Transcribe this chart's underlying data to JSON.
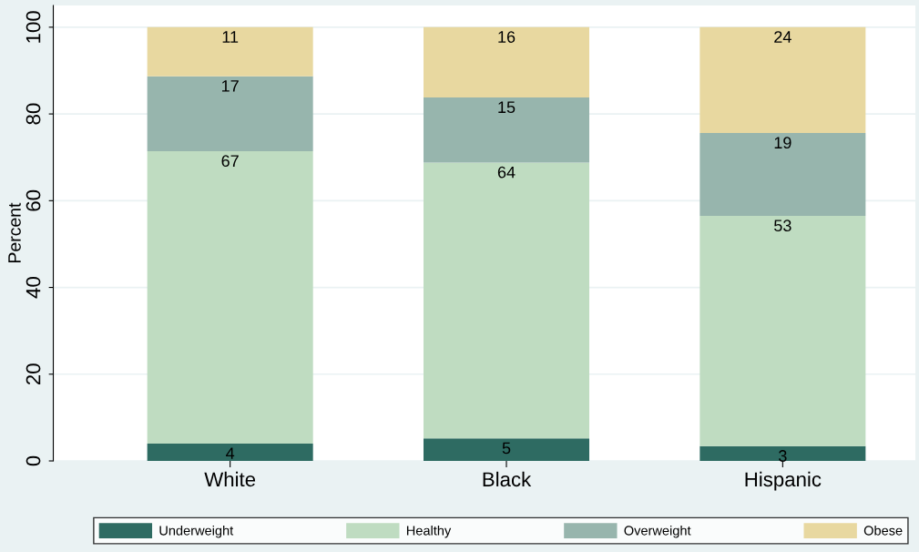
{
  "chart_data": {
    "type": "bar",
    "stacked": true,
    "ylabel": "Percent",
    "categories": [
      "White",
      "Black",
      "Hispanic"
    ],
    "series": [
      {
        "name": "Underweight",
        "color": "#2e6b62",
        "values": [
          4.0,
          5.2,
          3.4
        ],
        "value_labels": [
          "4",
          "5",
          "3"
        ]
      },
      {
        "name": "Healthy",
        "color": "#bfdcc1",
        "values": [
          67.4,
          63.6,
          53.1
        ],
        "value_labels": [
          "67",
          "64",
          "53"
        ]
      },
      {
        "name": "Overweight",
        "color": "#97b5ad",
        "values": [
          17.3,
          15.0,
          19.1
        ],
        "value_labels": [
          "17",
          "15",
          "19"
        ]
      },
      {
        "name": "Obese",
        "color": "#e8d8a0",
        "values": [
          11.3,
          16.2,
          24.4
        ],
        "value_labels": [
          "11",
          "16",
          "24"
        ]
      }
    ],
    "ylim": [
      0,
      105
    ],
    "yticks": [
      0,
      20,
      40,
      60,
      80,
      100
    ],
    "grid": "y",
    "legend": "bottom"
  }
}
